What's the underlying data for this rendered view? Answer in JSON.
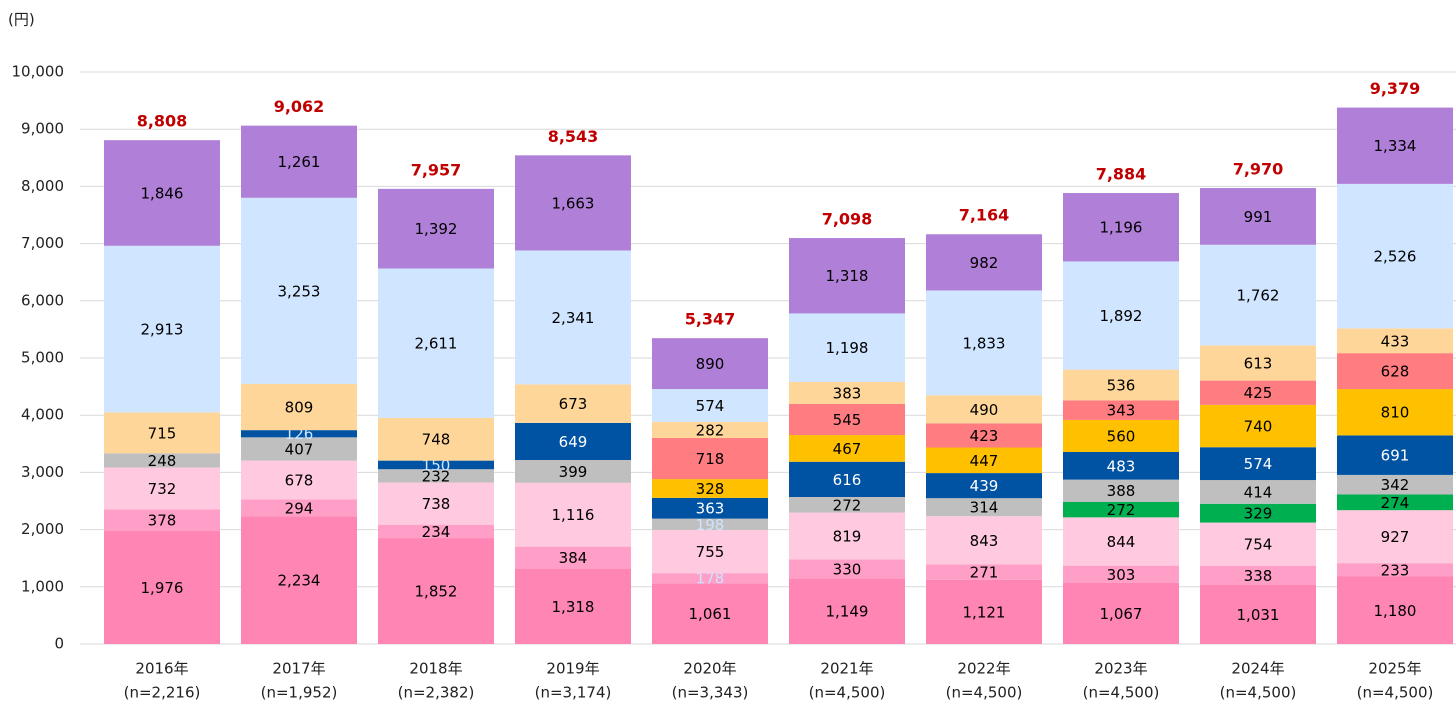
{
  "chart_data": {
    "type": "stacked_bar",
    "y_unit": "(円)",
    "categories": [
      "2016年",
      "2017年",
      "2018年",
      "2019年",
      "2020年",
      "2021年",
      "2022年",
      "2023年",
      "2024年",
      "2025年"
    ],
    "sample_sizes": [
      "(n=2,216)",
      "(n=1,952)",
      "(n=2,382)",
      "(n=3,174)",
      "(n=3,343)",
      "(n=4,500)",
      "(n=4,500)",
      "(n=4,500)",
      "(n=4,500)",
      "(n=4,500)"
    ],
    "ylim": [
      0,
      10000
    ],
    "yticks": [
      0,
      {
        "value": 1000,
        "label": "1,000"
      },
      {
        "value": 2000,
        "label": "2,000"
      },
      {
        "value": 3000,
        "label": "3,000"
      },
      {
        "value": 4000,
        "label": "4,000"
      },
      {
        "value": 5000,
        "label": "5,000"
      },
      {
        "value": 6000,
        "label": "6,000"
      },
      {
        "value": 7000,
        "label": "7,000"
      },
      {
        "value": 8000,
        "label": "8,000"
      },
      {
        "value": 9000,
        "label": "9,000"
      },
      {
        "value": 10000,
        "label": "10,000"
      }
    ],
    "grid": true,
    "series": [
      {
        "color": "#FF85B4",
        "label_color": "#000000",
        "values": [
          1976,
          2234,
          1852,
          1318,
          1061,
          1149,
          1121,
          1067,
          1031,
          1180
        ],
        "value_labels": [
          "1,976",
          "2,234",
          "1,852",
          "1,318",
          "1,061",
          "1,149",
          "1,121",
          "1,067",
          "1,031",
          "1,180"
        ]
      },
      {
        "color": "#FF9EC6",
        "label_color": "#000000",
        "values": [
          378,
          294,
          234,
          384,
          178,
          330,
          271,
          303,
          338,
          233
        ]
      },
      {
        "color": "#FFC9DF",
        "label_color": "#000000",
        "values": [
          732,
          678,
          738,
          1116,
          755,
          819,
          843,
          844,
          754,
          927
        ],
        "value_labels": [
          "732",
          "678",
          "738",
          "1,116",
          "755",
          "819",
          "843",
          "844",
          "754",
          "927"
        ]
      },
      {
        "color": "#00B050",
        "label_color": "#000000",
        "values": [
          null,
          null,
          null,
          null,
          null,
          null,
          null,
          272,
          329,
          274
        ]
      },
      {
        "color": "#BFBFBF",
        "label_color": "#000000",
        "values": [
          248,
          407,
          232,
          399,
          198,
          272,
          314,
          388,
          414,
          342
        ]
      },
      {
        "color": "#0052A3",
        "label_color": "#FFFFFF",
        "values": [
          null,
          126,
          150,
          649,
          363,
          616,
          439,
          483,
          574,
          691
        ]
      },
      {
        "color": "#FFC000",
        "label_color": "#000000",
        "values": [
          null,
          null,
          null,
          null,
          328,
          467,
          447,
          560,
          740,
          810
        ]
      },
      {
        "color": "#FF7C80",
        "label_color": "#000000",
        "values": [
          null,
          null,
          null,
          null,
          718,
          545,
          423,
          343,
          425,
          628
        ]
      },
      {
        "color": "#FFD699",
        "label_color": "#000000",
        "values": [
          715,
          809,
          748,
          673,
          282,
          383,
          490,
          536,
          613,
          433
        ]
      },
      {
        "color": "#D0E5FF",
        "label_color": "#000000",
        "values": [
          2913,
          3253,
          2611,
          2341,
          574,
          1198,
          1833,
          1892,
          1762,
          2526
        ],
        "value_labels": [
          "2,913",
          "3,253",
          "2,611",
          "2,341",
          "574",
          "1,198",
          "1,833",
          "1,892",
          "1,762",
          "2,526"
        ]
      },
      {
        "color": "#B07FD8",
        "label_color": "#000000",
        "values": [
          1846,
          1261,
          1392,
          1663,
          890,
          1318,
          982,
          1196,
          991,
          1334
        ],
        "value_labels": [
          "1,846",
          "1,261",
          "1,392",
          "1,663",
          "890",
          "1,318",
          "982",
          "1,196",
          "991",
          "1,334"
        ]
      }
    ],
    "totals": [
      8808,
      9062,
      7957,
      8543,
      5347,
      7098,
      7164,
      7884,
      7970,
      9379
    ],
    "total_labels": [
      "8,808",
      "9,062",
      "7,957",
      "8,543",
      "5,347",
      "7,098",
      "7,164",
      "7,884",
      "7,970",
      "9,379"
    ],
    "total_color": "#C00000"
  }
}
